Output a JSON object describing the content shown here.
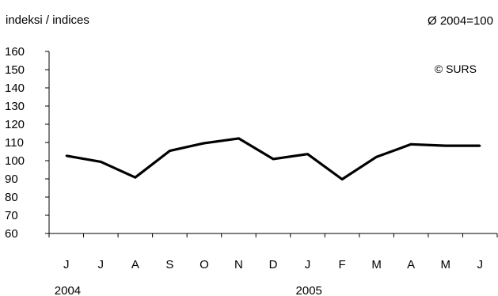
{
  "header": {
    "units_label": "indeksi / indices",
    "base_label": "Ø 2004=100"
  },
  "chart_data": {
    "type": "line",
    "title": "",
    "xlabel": "",
    "ylabel": "indeksi / indices",
    "categories": [
      "J",
      "J",
      "A",
      "S",
      "O",
      "N",
      "D",
      "J",
      "F",
      "M",
      "A",
      "M",
      "J"
    ],
    "years": [
      {
        "label": "2004",
        "start_index": 0
      },
      {
        "label": "2005",
        "start_index": 7
      }
    ],
    "series": [
      {
        "values": [
          102.7,
          99.4,
          90.8,
          105.4,
          109.6,
          112.2,
          100.9,
          103.6,
          89.8,
          102.1,
          109.0,
          108.2,
          108.2
        ]
      }
    ],
    "ylim": [
      60,
      160
    ],
    "yticks": [
      60,
      70,
      80,
      90,
      100,
      110,
      120,
      130,
      140,
      150,
      160
    ],
    "annotation": "© SURS",
    "grid": false,
    "legend": "none",
    "line_color": "#000000"
  }
}
